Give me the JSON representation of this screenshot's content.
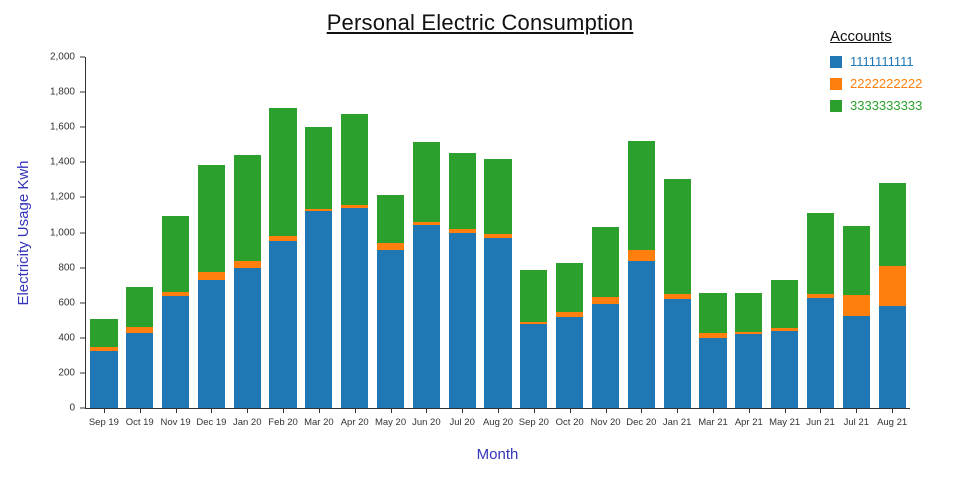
{
  "chart_data": {
    "type": "bar",
    "stacked": true,
    "title": "Personal Electric Consumption",
    "xlabel": "Month",
    "ylabel": "Electricity Usage Kwh",
    "legend_title": "Accounts",
    "legend_position": "top-right",
    "grid": false,
    "ylim": [
      0,
      2000
    ],
    "ytick_step": 200,
    "axis_title_color": "#3434bb",
    "categories": [
      "Sep 19",
      "Oct 19",
      "Nov 19",
      "Dec 19",
      "Jan 20",
      "Feb 20",
      "Mar 20",
      "Apr 20",
      "May 20",
      "Jun 20",
      "Jul 20",
      "Aug 20",
      "Sep 20",
      "Oct 20",
      "Nov 20",
      "Dec 20",
      "Jan 21",
      "Mar 21",
      "Apr 21",
      "May 21",
      "Jun 21",
      "Jul 21",
      "Aug 21"
    ],
    "series": [
      {
        "name": "1111111111",
        "color": "#1f77b4",
        "values": [
          325,
          430,
          640,
          730,
          800,
          950,
          1125,
          1140,
          900,
          1040,
          1000,
          970,
          480,
          520,
          590,
          840,
          620,
          400,
          420,
          440,
          625,
          525,
          580
        ]
      },
      {
        "name": "2222222222",
        "color": "#ff7f0e",
        "values": [
          25,
          30,
          20,
          45,
          35,
          30,
          10,
          15,
          40,
          20,
          20,
          20,
          10,
          30,
          40,
          60,
          30,
          30,
          15,
          15,
          25,
          120,
          230
        ]
      },
      {
        "name": "3333333333",
        "color": "#2ca02c",
        "values": [
          160,
          230,
          435,
          610,
          605,
          730,
          465,
          520,
          275,
          455,
          435,
          430,
          295,
          275,
          400,
          620,
          655,
          225,
          220,
          275,
          460,
          395,
          475
        ]
      }
    ]
  }
}
